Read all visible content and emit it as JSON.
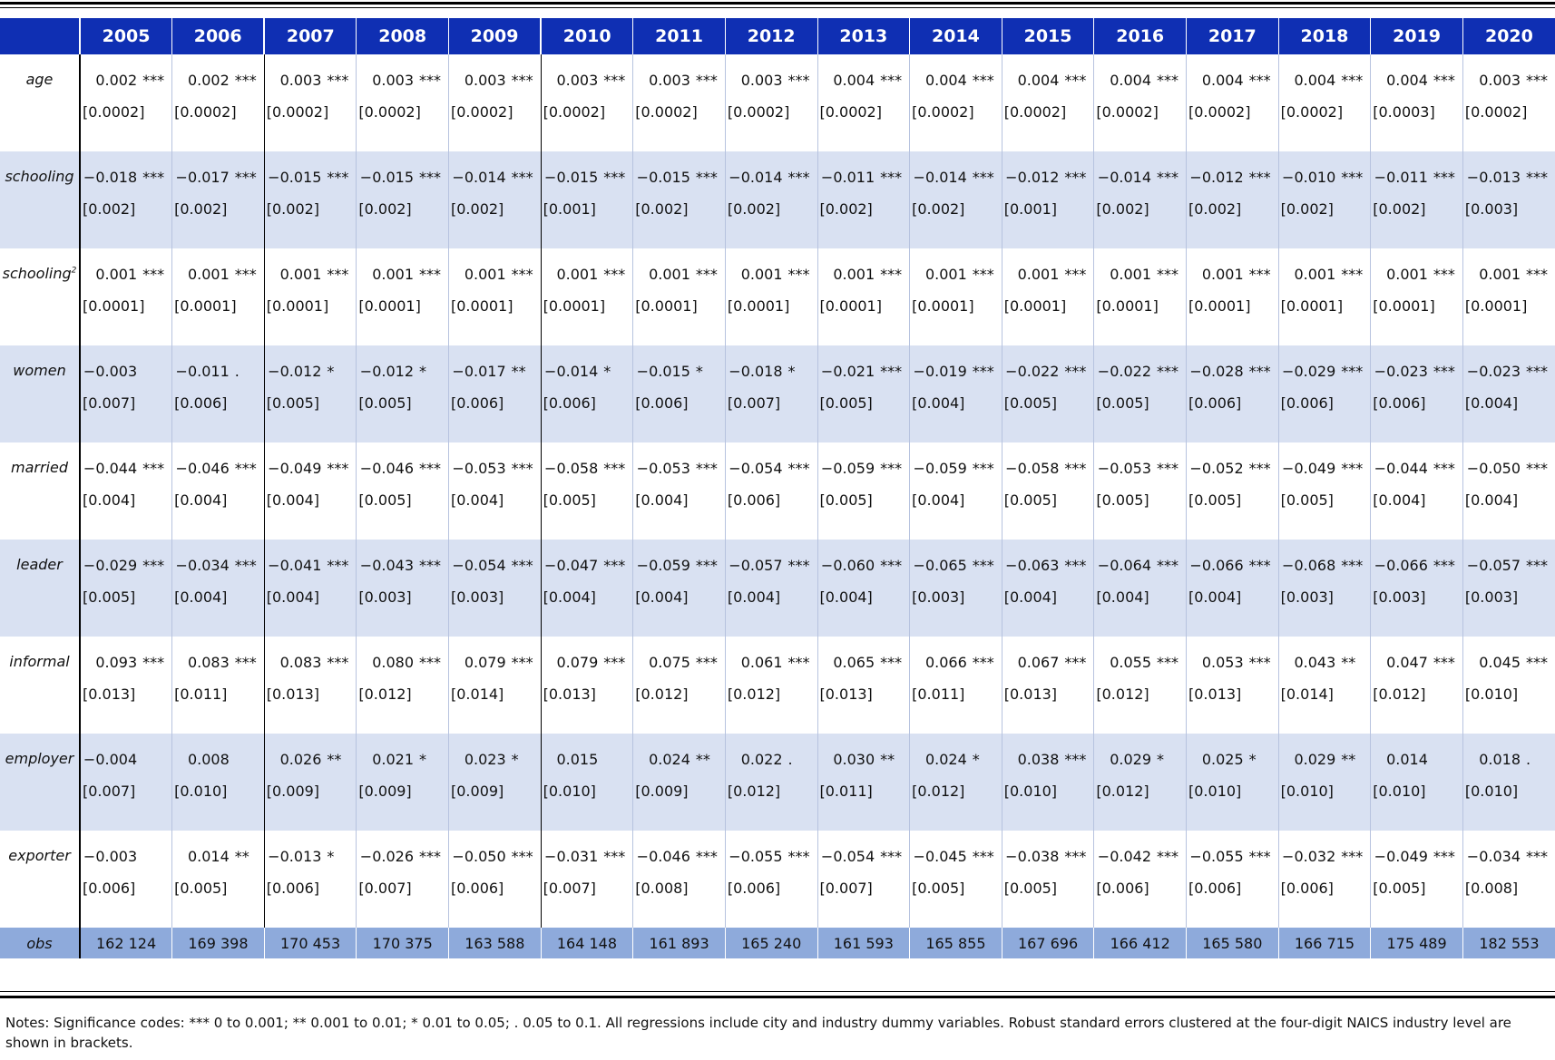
{
  "years": [
    "2005",
    "2006",
    "2007",
    "2008",
    "2009",
    "2010",
    "2011",
    "2012",
    "2013",
    "2014",
    "2015",
    "2016",
    "2017",
    "2018",
    "2019",
    "2020"
  ],
  "rows": [
    {
      "label": "age",
      "sup": "",
      "coef": [
        "0.002",
        "0.002",
        "0.003",
        "0.003",
        "0.003",
        "0.003",
        "0.003",
        "0.003",
        "0.004",
        "0.004",
        "0.004",
        "0.004",
        "0.004",
        "0.004",
        "0.004",
        "0.003"
      ],
      "sig": [
        "***",
        "***",
        "***",
        "***",
        "***",
        "***",
        "***",
        "***",
        "***",
        "***",
        "***",
        "***",
        "***",
        "***",
        "***",
        "***"
      ],
      "se": [
        "[0.0002]",
        "[0.0002]",
        "[0.0002]",
        "[0.0002]",
        "[0.0002]",
        "[0.0002]",
        "[0.0002]",
        "[0.0002]",
        "[0.0002]",
        "[0.0002]",
        "[0.0002]",
        "[0.0002]",
        "[0.0002]",
        "[0.0002]",
        "[0.0003]",
        "[0.0002]"
      ]
    },
    {
      "label": "schooling",
      "sup": "",
      "coef": [
        "−0.018",
        "−0.017",
        "−0.015",
        "−0.015",
        "−0.014",
        "−0.015",
        "−0.015",
        "−0.014",
        "−0.011",
        "−0.014",
        "−0.012",
        "−0.014",
        "−0.012",
        "−0.010",
        "−0.011",
        "−0.013"
      ],
      "sig": [
        "***",
        "***",
        "***",
        "***",
        "***",
        "***",
        "***",
        "***",
        "***",
        "***",
        "***",
        "***",
        "***",
        "***",
        "***",
        "***"
      ],
      "se": [
        "[0.002]",
        "[0.002]",
        "[0.002]",
        "[0.002]",
        "[0.002]",
        "[0.001]",
        "[0.002]",
        "[0.002]",
        "[0.002]",
        "[0.002]",
        "[0.001]",
        "[0.002]",
        "[0.002]",
        "[0.002]",
        "[0.002]",
        "[0.003]"
      ]
    },
    {
      "label": "schooling",
      "sup": "2",
      "coef": [
        "0.001",
        "0.001",
        "0.001",
        "0.001",
        "0.001",
        "0.001",
        "0.001",
        "0.001",
        "0.001",
        "0.001",
        "0.001",
        "0.001",
        "0.001",
        "0.001",
        "0.001",
        "0.001"
      ],
      "sig": [
        "***",
        "***",
        "***",
        "***",
        "***",
        "***",
        "***",
        "***",
        "***",
        "***",
        "***",
        "***",
        "***",
        "***",
        "***",
        "***"
      ],
      "se": [
        "[0.0001]",
        "[0.0001]",
        "[0.0001]",
        "[0.0001]",
        "[0.0001]",
        "[0.0001]",
        "[0.0001]",
        "[0.0001]",
        "[0.0001]",
        "[0.0001]",
        "[0.0001]",
        "[0.0001]",
        "[0.0001]",
        "[0.0001]",
        "[0.0001]",
        "[0.0001]"
      ]
    },
    {
      "label": "women",
      "sup": "",
      "coef": [
        "−0.003",
        "−0.011",
        "−0.012",
        "−0.012",
        "−0.017",
        "−0.014",
        "−0.015",
        "−0.018",
        "−0.021",
        "−0.019",
        "−0.022",
        "−0.022",
        "−0.028",
        "−0.029",
        "−0.023",
        "−0.023"
      ],
      "sig": [
        "",
        ".",
        "*",
        "*",
        "**",
        "*",
        "*",
        "*",
        "***",
        "***",
        "***",
        "***",
        "***",
        "***",
        "***",
        "***"
      ],
      "se": [
        "[0.007]",
        "[0.006]",
        "[0.005]",
        "[0.005]",
        "[0.006]",
        "[0.006]",
        "[0.006]",
        "[0.007]",
        "[0.005]",
        "[0.004]",
        "[0.005]",
        "[0.005]",
        "[0.006]",
        "[0.006]",
        "[0.006]",
        "[0.004]"
      ]
    },
    {
      "label": "married",
      "sup": "",
      "coef": [
        "−0.044",
        "−0.046",
        "−0.049",
        "−0.046",
        "−0.053",
        "−0.058",
        "−0.053",
        "−0.054",
        "−0.059",
        "−0.059",
        "−0.058",
        "−0.053",
        "−0.052",
        "−0.049",
        "−0.044",
        "−0.050"
      ],
      "sig": [
        "***",
        "***",
        "***",
        "***",
        "***",
        "***",
        "***",
        "***",
        "***",
        "***",
        "***",
        "***",
        "***",
        "***",
        "***",
        "***"
      ],
      "se": [
        "[0.004]",
        "[0.004]",
        "[0.004]",
        "[0.005]",
        "[0.004]",
        "[0.005]",
        "[0.004]",
        "[0.006]",
        "[0.005]",
        "[0.004]",
        "[0.005]",
        "[0.005]",
        "[0.005]",
        "[0.005]",
        "[0.004]",
        "[0.004]"
      ]
    },
    {
      "label": "leader",
      "sup": "",
      "coef": [
        "−0.029",
        "−0.034",
        "−0.041",
        "−0.043",
        "−0.054",
        "−0.047",
        "−0.059",
        "−0.057",
        "−0.060",
        "−0.065",
        "−0.063",
        "−0.064",
        "−0.066",
        "−0.068",
        "−0.066",
        "−0.057"
      ],
      "sig": [
        "***",
        "***",
        "***",
        "***",
        "***",
        "***",
        "***",
        "***",
        "***",
        "***",
        "***",
        "***",
        "***",
        "***",
        "***",
        "***"
      ],
      "se": [
        "[0.005]",
        "[0.004]",
        "[0.004]",
        "[0.003]",
        "[0.003]",
        "[0.004]",
        "[0.004]",
        "[0.004]",
        "[0.004]",
        "[0.003]",
        "[0.004]",
        "[0.004]",
        "[0.004]",
        "[0.003]",
        "[0.003]",
        "[0.003]"
      ]
    },
    {
      "label": "informal",
      "sup": "",
      "coef": [
        "0.093",
        "0.083",
        "0.083",
        "0.080",
        "0.079",
        "0.079",
        "0.075",
        "0.061",
        "0.065",
        "0.066",
        "0.067",
        "0.055",
        "0.053",
        "0.043",
        "0.047",
        "0.045"
      ],
      "sig": [
        "***",
        "***",
        "***",
        "***",
        "***",
        "***",
        "***",
        "***",
        "***",
        "***",
        "***",
        "***",
        "***",
        "**",
        "***",
        "***"
      ],
      "se": [
        "[0.013]",
        "[0.011]",
        "[0.013]",
        "[0.012]",
        "[0.014]",
        "[0.013]",
        "[0.012]",
        "[0.012]",
        "[0.013]",
        "[0.011]",
        "[0.013]",
        "[0.012]",
        "[0.013]",
        "[0.014]",
        "[0.012]",
        "[0.010]"
      ]
    },
    {
      "label": "employer",
      "sup": "",
      "coef": [
        "−0.004",
        "0.008",
        "0.026",
        "0.021",
        "0.023",
        "0.015",
        "0.024",
        "0.022",
        "0.030",
        "0.024",
        "0.038",
        "0.029",
        "0.025",
        "0.029",
        "0.014",
        "0.018"
      ],
      "sig": [
        "",
        "",
        "**",
        "*",
        "*",
        "",
        "**",
        ".",
        "**",
        "*",
        "***",
        "*",
        "*",
        "**",
        "",
        "."
      ],
      "se": [
        "[0.007]",
        "[0.010]",
        "[0.009]",
        "[0.009]",
        "[0.009]",
        "[0.010]",
        "[0.009]",
        "[0.012]",
        "[0.011]",
        "[0.012]",
        "[0.010]",
        "[0.012]",
        "[0.010]",
        "[0.010]",
        "[0.010]",
        "[0.010]"
      ]
    },
    {
      "label": "exporter",
      "sup": "",
      "coef": [
        "−0.003",
        "0.014",
        "−0.013",
        "−0.026",
        "−0.050",
        "−0.031",
        "−0.046",
        "−0.055",
        "−0.054",
        "−0.045",
        "−0.038",
        "−0.042",
        "−0.055",
        "−0.032",
        "−0.049",
        "−0.034"
      ],
      "sig": [
        "",
        "**",
        "*",
        "***",
        "***",
        "***",
        "***",
        "***",
        "***",
        "***",
        "***",
        "***",
        "***",
        "***",
        "***",
        "***"
      ],
      "se": [
        "[0.006]",
        "[0.005]",
        "[0.006]",
        "[0.007]",
        "[0.006]",
        "[0.007]",
        "[0.008]",
        "[0.006]",
        "[0.007]",
        "[0.005]",
        "[0.005]",
        "[0.006]",
        "[0.006]",
        "[0.006]",
        "[0.005]",
        "[0.008]"
      ]
    }
  ],
  "obs": {
    "label": "obs",
    "values": [
      "162 124",
      "169 398",
      "170 453",
      "170 375",
      "163 588",
      "164 148",
      "161 893",
      "165 240",
      "161 593",
      "165 855",
      "167 696",
      "166 412",
      "165 580",
      "166 715",
      "175 489",
      "182 553"
    ]
  },
  "notes": "Notes: Significance codes: *** 0 to 0.001; ** 0.001 to 0.01; * 0.01 to 0.05; . 0.05 to 0.1. All regressions include city and industry dummy variables. Robust standard errors clustered at the four-digit NAICS industry level are shown in brackets.",
  "colors": {
    "header_bg": "#0f2fb3",
    "band_bg": "#d9e1f2",
    "obs_bg": "#8eaadb"
  }
}
